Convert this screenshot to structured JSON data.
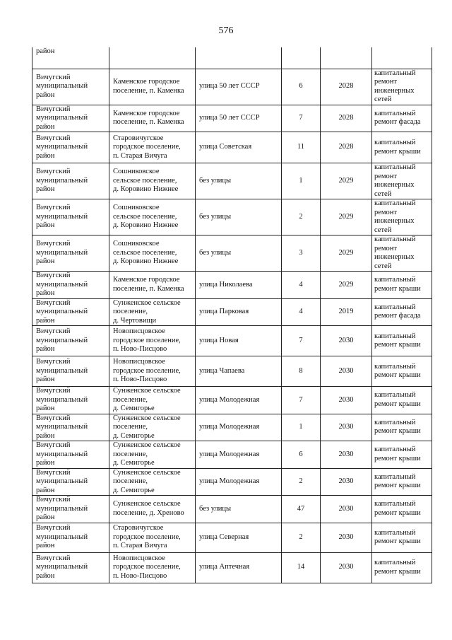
{
  "page_number": "576",
  "first_row": {
    "district": "район"
  },
  "rows": [
    {
      "district": "Вичугский\nмуниципальный\nрайон",
      "settlement": "Каменское городское\nпоселение, п. Каменка",
      "street": "улица 50 лет СССР",
      "house": "6",
      "year": "2028",
      "work": "капитальный\nремонт\nинженерных\nсетей"
    },
    {
      "district": "Вичугский\nмуниципальный\nрайон",
      "settlement": "Каменское городское\nпоселение, п. Каменка",
      "street": "улица 50 лет СССР",
      "house": "7",
      "year": "2028",
      "work": "капитальный\nремонт фасада"
    },
    {
      "district": "Вичугский\nмуниципальный\nрайон",
      "settlement": "Старовичугское\nгородское поселение,\nп. Старая Вичуга",
      "street": "улица Советская",
      "house": "11",
      "year": "2028",
      "work": "капитальный\nремонт крыши"
    },
    {
      "district": "Вичугский\nмуниципальный\nрайон",
      "settlement": "Сошниковское\nсельское поселение,\nд. Коровино Нижнее",
      "street": "без улицы",
      "house": "1",
      "year": "2029",
      "work": "капитальный\nремонт\nинженерных\nсетей"
    },
    {
      "district": "Вичугский\nмуниципальный\nрайон",
      "settlement": "Сошниковское\nсельское поселение,\nд. Коровино Нижнее",
      "street": "без улицы",
      "house": "2",
      "year": "2029",
      "work": "капитальный\nремонт\nинженерных\nсетей"
    },
    {
      "district": "Вичугский\nмуниципальный\nрайон",
      "settlement": "Сошниковское\nсельское поселение,\nд. Коровино Нижнее",
      "street": "без улицы",
      "house": "3",
      "year": "2029",
      "work": "капитальный\nремонт\nинженерных\nсетей"
    },
    {
      "district": "Вичугский\nмуниципальный\nрайон",
      "settlement": "Каменское городское\nпоселение, п. Каменка",
      "street": "улица Николаева",
      "house": "4",
      "year": "2029",
      "work": "капитальный\nремонт крыши"
    },
    {
      "district": "Вичугский\nмуниципальный\nрайон",
      "settlement": "Сунженское сельское\nпоселение,\nд. Чертовищи",
      "street": "улица Парковая",
      "house": "4",
      "year": "2019",
      "work": "капитальный\nремонт фасада"
    },
    {
      "district": "Вичугский\nмуниципальный\nрайон",
      "settlement": "Новописцовское\nгородское поселение,\nп. Ново-Писцово",
      "street": "улица Новая",
      "house": "7",
      "year": "2030",
      "work": "капитальный\nремонт крыши"
    },
    {
      "district": "Вичугский\nмуниципальный\nрайон",
      "settlement": "Новописцовское\nгородское поселение,\nп. Ново-Писцово",
      "street": "улица Чапаева",
      "house": "8",
      "year": "2030",
      "work": "капитальный\nремонт крыши"
    },
    {
      "district": "Вичугский\nмуниципальный\nрайон",
      "settlement": "Сунженское сельское\nпоселение,\nд. Семигорье",
      "street": "улица Молодежная",
      "house": "7",
      "year": "2030",
      "work": "капитальный\nремонт крыши"
    },
    {
      "district": "Вичугский\nмуниципальный\nрайон",
      "settlement": "Сунженское сельское\nпоселение,\nд. Семигорье",
      "street": "улица Молодежная",
      "house": "1",
      "year": "2030",
      "work": "капитальный\nремонт крыши"
    },
    {
      "district": "Вичугский\nмуниципальный\nрайон",
      "settlement": "Сунженское сельское\nпоселение,\nд. Семигорье",
      "street": "улица Молодежная",
      "house": "6",
      "year": "2030",
      "work": "капитальный\nремонт крыши"
    },
    {
      "district": "Вичугский\nмуниципальный\nрайон",
      "settlement": "Сунженское сельское\nпоселение,\nд. Семигорье",
      "street": "улица Молодежная",
      "house": "2",
      "year": "2030",
      "work": "капитальный\nремонт крыши"
    },
    {
      "district": "Вичугский\nмуниципальный\nрайон",
      "settlement": "Сунженское сельское\nпоселение, д. Хреново",
      "street": "без улицы",
      "house": "47",
      "year": "2030",
      "work": "капитальный\nремонт крыши"
    },
    {
      "district": "Вичугский\nмуниципальный\nрайон",
      "settlement": "Старовичугское\nгородское поселение,\nп. Старая Вичуга",
      "street": "улица  Северная",
      "house": "2",
      "year": "2030",
      "work": "капитальный\nремонт крыши"
    },
    {
      "district": "Вичугский\nмуниципальный\nрайон",
      "settlement": "Новописцовское\nгородское поселение,\nп. Ново-Писцово",
      "street": "улица Аптечная",
      "house": "14",
      "year": "2030",
      "work": "капитальный\nремонт крыши"
    }
  ]
}
